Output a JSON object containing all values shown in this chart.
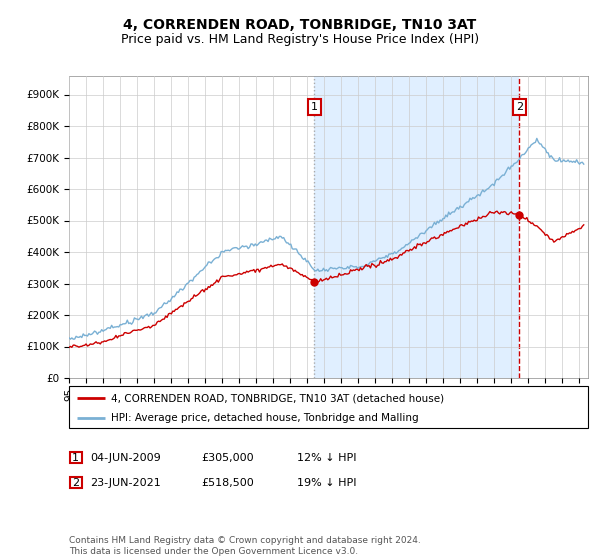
{
  "title": "4, CORRENDEN ROAD, TONBRIDGE, TN10 3AT",
  "subtitle": "Price paid vs. HM Land Registry's House Price Index (HPI)",
  "yticks": [
    0,
    100000,
    200000,
    300000,
    400000,
    500000,
    600000,
    700000,
    800000,
    900000
  ],
  "ytick_labels": [
    "£0",
    "£100K",
    "£200K",
    "£300K",
    "£400K",
    "£500K",
    "£600K",
    "£700K",
    "£800K",
    "£900K"
  ],
  "ylim": [
    0,
    960000
  ],
  "xlim_start": 1995.0,
  "xlim_end": 2025.5,
  "hpi_color": "#7ab0d4",
  "price_color": "#cc0000",
  "shade_color": "#ddeeff",
  "vline1_color": "#aaaaaa",
  "vline2_color": "#cc0000",
  "sale1_x": 2009.42,
  "sale1_y": 305000,
  "sale2_x": 2021.47,
  "sale2_y": 518500,
  "legend_house_label": "4, CORRENDEN ROAD, TONBRIDGE, TN10 3AT (detached house)",
  "legend_hpi_label": "HPI: Average price, detached house, Tonbridge and Malling",
  "table_row1": [
    "1",
    "04-JUN-2009",
    "£305,000",
    "12% ↓ HPI"
  ],
  "table_row2": [
    "2",
    "23-JUN-2021",
    "£518,500",
    "19% ↓ HPI"
  ],
  "footer": "Contains HM Land Registry data © Crown copyright and database right 2024.\nThis data is licensed under the Open Government Licence v3.0.",
  "bg_color": "#ffffff",
  "grid_color": "#cccccc",
  "title_fontsize": 10,
  "subtitle_fontsize": 9,
  "tick_fontsize": 7.5,
  "legend_fontsize": 7.5,
  "table_fontsize": 8
}
